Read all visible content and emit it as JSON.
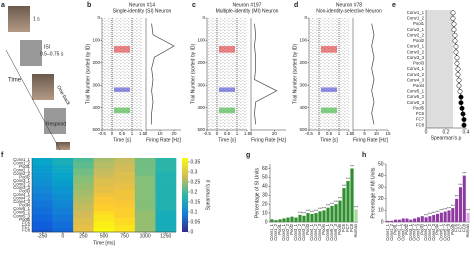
{
  "panel_labels": [
    "a",
    "b",
    "c",
    "d",
    "e",
    "f",
    "g",
    "h"
  ],
  "task": {
    "duration": "1 s",
    "isi": "ISI",
    "isi_range": "0.5–0.75 s",
    "time": "Time",
    "one_back": "One-back",
    "respond": "Respond"
  },
  "chart_data": [
    {
      "type": "raster",
      "title": "Neuron #14",
      "subtitle": "Single-identity (SI) Neuron",
      "ylabel": "Trial Number (sorted by ID)",
      "xlabel": "Time [s]",
      "xlim": [
        -0.5,
        1.5
      ],
      "xticks": [
        -0.5,
        0,
        0.5,
        1,
        1.5
      ],
      "ylim": [
        0,
        500
      ],
      "yticks": [
        0,
        100,
        200,
        300,
        400,
        500
      ],
      "stimulus_window": [
        0,
        1
      ],
      "fr_xlabel": "Firing Rate [Hz]",
      "fr_xlim": [
        0,
        25
      ],
      "fr_xticks": [
        0,
        10,
        20
      ],
      "trials": [
        25,
        75,
        125,
        175,
        225,
        275,
        325,
        375,
        425,
        475
      ],
      "rates": [
        4,
        5,
        20,
        6,
        4,
        5,
        4,
        5,
        4,
        4
      ]
    },
    {
      "type": "raster",
      "title": "Neuron #197",
      "subtitle": "Multiple-identity (MI) Neuron",
      "ylabel": "Trial Number (sorted by ID)",
      "xlabel": "Time [s]",
      "xlim": [
        -0.5,
        1.5
      ],
      "xticks": [
        -0.5,
        0,
        0.5,
        1,
        1.5
      ],
      "ylim": [
        0,
        500
      ],
      "yticks": [
        0,
        100,
        200,
        300,
        400,
        500
      ],
      "stimulus_window": [
        0,
        1
      ],
      "fr_xlabel": "Firing Rate [Hz]",
      "fr_xlim": [
        0,
        30
      ],
      "fr_xticks": [
        0,
        20
      ],
      "trials": [
        25,
        75,
        125,
        175,
        225,
        275,
        325,
        375,
        425,
        475
      ],
      "rates": [
        3,
        4,
        3,
        4,
        4,
        3,
        22,
        4,
        3,
        4
      ]
    },
    {
      "type": "raster",
      "title": "Neuron #78",
      "subtitle": "Non-identity-selective Neuron",
      "ylabel": "Trial Number (sorted by ID)",
      "xlabel": "Time [s]",
      "xlim": [
        -0.5,
        1.5
      ],
      "xticks": [
        -0.5,
        0,
        0.5,
        1,
        1.5
      ],
      "ylim": [
        0,
        500
      ],
      "yticks": [
        0,
        100,
        200,
        300,
        400,
        500
      ],
      "stimulus_window": [
        0,
        1
      ],
      "fr_xlabel": "Firing Rate [Hz]",
      "fr_xlim": [
        0,
        15
      ],
      "fr_xticks": [
        0,
        5,
        10,
        15
      ],
      "trials": [
        25,
        75,
        125,
        175,
        225,
        275,
        325,
        375,
        425,
        475
      ],
      "rates": [
        8,
        9,
        8,
        9,
        8,
        9,
        8,
        9,
        8,
        9
      ]
    },
    {
      "type": "profile",
      "xlabel": "Spearman's ρ",
      "xlim": [
        0,
        0.4
      ],
      "xticks": [
        0,
        0.2,
        0.4
      ],
      "shaded_range": [
        0,
        0.27
      ],
      "color": "#000000",
      "categories": [
        "Conv1_1",
        "Conv1_2",
        "Pool1",
        "Conv2_1",
        "Conv2_2",
        "Pool2",
        "Conv3_1",
        "Conv3_2",
        "Conv3_3",
        "Pool3",
        "Conv4_1",
        "Conv4_2",
        "Conv4_3",
        "Pool4",
        "Conv5_1",
        "Conv5_2",
        "Conv5_3",
        "Pool5",
        "FC6",
        "FC7",
        "FC8"
      ],
      "values": [
        0.27,
        0.27,
        0.28,
        0.28,
        0.29,
        0.29,
        0.3,
        0.3,
        0.31,
        0.31,
        0.32,
        0.32,
        0.33,
        0.33,
        0.34,
        0.35,
        0.35,
        0.36,
        0.37,
        0.38,
        0.38
      ],
      "marker_filled": [
        false,
        false,
        false,
        false,
        false,
        false,
        false,
        false,
        false,
        false,
        false,
        false,
        false,
        false,
        false,
        true,
        true,
        true,
        true,
        true,
        true
      ]
    },
    {
      "type": "heatmap",
      "xlabel": "Time [ms]",
      "colorbar_label": "Spearman's ρ",
      "categories": [
        "Conv1_1",
        "Conv1_2",
        "Pool1",
        "Conv2_1",
        "Conv2_2",
        "Pool2",
        "Conv3_1",
        "Conv3_2",
        "Conv3_3",
        "Pool3",
        "Conv4_1",
        "Conv4_2",
        "Conv4_3",
        "Pool4",
        "Conv5_1",
        "Conv5_2",
        "Conv5_3",
        "Pool5",
        "FC6",
        "FC7",
        "FC8"
      ],
      "x": [
        -250,
        0,
        250,
        500,
        750,
        1000,
        1250
      ],
      "xlim": [
        -375,
        1375
      ],
      "xticks": [
        -250,
        0,
        250,
        500,
        750,
        1000,
        1250
      ],
      "zlim": [
        0,
        0.37
      ],
      "zticks": [
        0,
        0.05,
        0.1,
        0.15,
        0.2,
        0.25,
        0.3,
        0.35
      ],
      "values": [
        [
          0.14,
          0.16,
          0.2,
          0.25,
          0.27,
          0.22,
          0.18
        ],
        [
          0.14,
          0.16,
          0.21,
          0.26,
          0.27,
          0.22,
          0.18
        ],
        [
          0.13,
          0.15,
          0.21,
          0.26,
          0.28,
          0.22,
          0.18
        ],
        [
          0.13,
          0.15,
          0.22,
          0.27,
          0.28,
          0.22,
          0.18
        ],
        [
          0.12,
          0.14,
          0.22,
          0.27,
          0.29,
          0.22,
          0.17
        ],
        [
          0.12,
          0.14,
          0.23,
          0.28,
          0.29,
          0.23,
          0.17
        ],
        [
          0.11,
          0.13,
          0.23,
          0.29,
          0.29,
          0.23,
          0.17
        ],
        [
          0.11,
          0.13,
          0.24,
          0.29,
          0.3,
          0.23,
          0.17
        ],
        [
          0.1,
          0.12,
          0.24,
          0.3,
          0.3,
          0.23,
          0.17
        ],
        [
          0.1,
          0.12,
          0.25,
          0.3,
          0.31,
          0.23,
          0.17
        ],
        [
          0.09,
          0.11,
          0.25,
          0.31,
          0.31,
          0.23,
          0.17
        ],
        [
          0.09,
          0.11,
          0.26,
          0.32,
          0.31,
          0.23,
          0.17
        ],
        [
          0.08,
          0.1,
          0.26,
          0.32,
          0.32,
          0.23,
          0.17
        ],
        [
          0.08,
          0.1,
          0.27,
          0.33,
          0.32,
          0.23,
          0.17
        ],
        [
          0.07,
          0.09,
          0.27,
          0.33,
          0.33,
          0.23,
          0.17
        ],
        [
          0.07,
          0.09,
          0.28,
          0.34,
          0.33,
          0.24,
          0.16
        ],
        [
          0.06,
          0.08,
          0.28,
          0.35,
          0.33,
          0.24,
          0.16
        ],
        [
          0.06,
          0.08,
          0.29,
          0.35,
          0.34,
          0.24,
          0.16
        ],
        [
          0.05,
          0.07,
          0.29,
          0.36,
          0.34,
          0.24,
          0.16
        ],
        [
          0.05,
          0.07,
          0.3,
          0.36,
          0.35,
          0.24,
          0.16
        ],
        [
          0.04,
          0.06,
          0.3,
          0.37,
          0.35,
          0.24,
          0.16
        ]
      ]
    },
    {
      "type": "bar",
      "ylabel": "Percentage of SI Units",
      "ylim": [
        0,
        65
      ],
      "yticks": [
        0,
        10,
        20,
        30,
        40,
        50,
        60
      ],
      "categories": [
        "Conv1_1",
        "Conv1_2",
        "Pool1",
        "Conv2_1",
        "Conv2_2",
        "Pool2",
        "Conv3_1",
        "Conv3_2",
        "Conv3_3",
        "Pool3",
        "Conv4_1",
        "Conv4_2",
        "Conv4_3",
        "Pool4",
        "Conv5_1",
        "Conv5_2",
        "Conv5_3",
        "Pool5",
        "FC6",
        "FC7",
        "FC8",
        "Human"
      ],
      "values": [
        3,
        2,
        3,
        4,
        5,
        6,
        5,
        8,
        7,
        10,
        9,
        10,
        12,
        13,
        16,
        18,
        20,
        24,
        38,
        46,
        60,
        14
      ],
      "colors": [
        "#2f8f2f",
        "#2f8f2f",
        "#2f8f2f",
        "#2f8f2f",
        "#2f8f2f",
        "#2f8f2f",
        "#2f8f2f",
        "#2f8f2f",
        "#2f8f2f",
        "#2f8f2f",
        "#2f8f2f",
        "#2f8f2f",
        "#2f8f2f",
        "#2f8f2f",
        "#2f8f2f",
        "#2f8f2f",
        "#2f8f2f",
        "#2f8f2f",
        "#2f8f2f",
        "#2f8f2f",
        "#2f8f2f",
        "#a6d8a0"
      ],
      "significance": [
        null,
        null,
        null,
        null,
        null,
        null,
        null,
        "***",
        "***",
        "***",
        "***",
        "***",
        "***",
        "***",
        "***",
        "***",
        "***",
        "***",
        "***",
        "***",
        "***",
        "***"
      ]
    },
    {
      "type": "bar",
      "ylabel": "Percentage of MI Units",
      "ylim": [
        0,
        50
      ],
      "yticks": [
        0,
        10,
        20,
        30,
        40,
        50
      ],
      "categories": [
        "Conv1_1",
        "Conv1_2",
        "Pool1",
        "Conv2_1",
        "Conv2_2",
        "Pool2",
        "Conv3_1",
        "Conv3_2",
        "Conv3_3",
        "Pool3",
        "Conv4_1",
        "Conv4_2",
        "Conv4_3",
        "Pool4",
        "Conv5_1",
        "Conv5_2",
        "Conv5_3",
        "Pool5",
        "FC6",
        "FC7",
        "FC8",
        "Human"
      ],
      "values": [
        1,
        1,
        2,
        2,
        3,
        3,
        2,
        3,
        4,
        5,
        4,
        5,
        6,
        7,
        8,
        9,
        10,
        12,
        20,
        30,
        40,
        8
      ],
      "colors": [
        "#8e3aa0",
        "#8e3aa0",
        "#8e3aa0",
        "#8e3aa0",
        "#8e3aa0",
        "#8e3aa0",
        "#8e3aa0",
        "#8e3aa0",
        "#8e3aa0",
        "#8e3aa0",
        "#8e3aa0",
        "#8e3aa0",
        "#8e3aa0",
        "#8e3aa0",
        "#8e3aa0",
        "#8e3aa0",
        "#8e3aa0",
        "#8e3aa0",
        "#8e3aa0",
        "#8e3aa0",
        "#8e3aa0",
        "#dcaee6"
      ],
      "significance": [
        null,
        null,
        null,
        null,
        null,
        null,
        null,
        null,
        null,
        null,
        "***",
        "***",
        "***",
        "***",
        "***",
        "***",
        "***",
        "***",
        "***",
        "***",
        "***",
        "***"
      ]
    }
  ]
}
